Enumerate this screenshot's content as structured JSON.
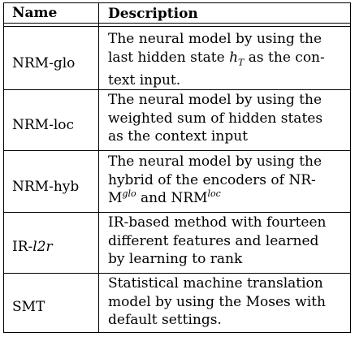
{
  "table": {
    "headers": {
      "name": "Name",
      "description": "Description"
    },
    "rows": [
      {
        "name": "NRM-glo",
        "lines": [
          "The neural model by using the",
          "last hidden state",
          "h",
          "T",
          "as the con-",
          "text input."
        ]
      },
      {
        "name": "NRM-loc",
        "lines": [
          "The neural model by using the",
          "weighted sum of hidden states",
          "as the context input"
        ]
      },
      {
        "name": "NRM-hyb",
        "lines": [
          "The neural model by using the",
          "hybrid of the encoders of NR-",
          "M",
          "glo",
          "and NRM",
          "loc"
        ]
      },
      {
        "name_prefix": "IR-",
        "name_italic": "l2r",
        "lines": [
          "IR-based method with fourteen",
          "different features and learned",
          "by learning to rank"
        ]
      },
      {
        "name": "SMT",
        "lines": [
          "Statistical machine translation",
          "model by using the Moses with",
          "default settings."
        ]
      }
    ]
  }
}
